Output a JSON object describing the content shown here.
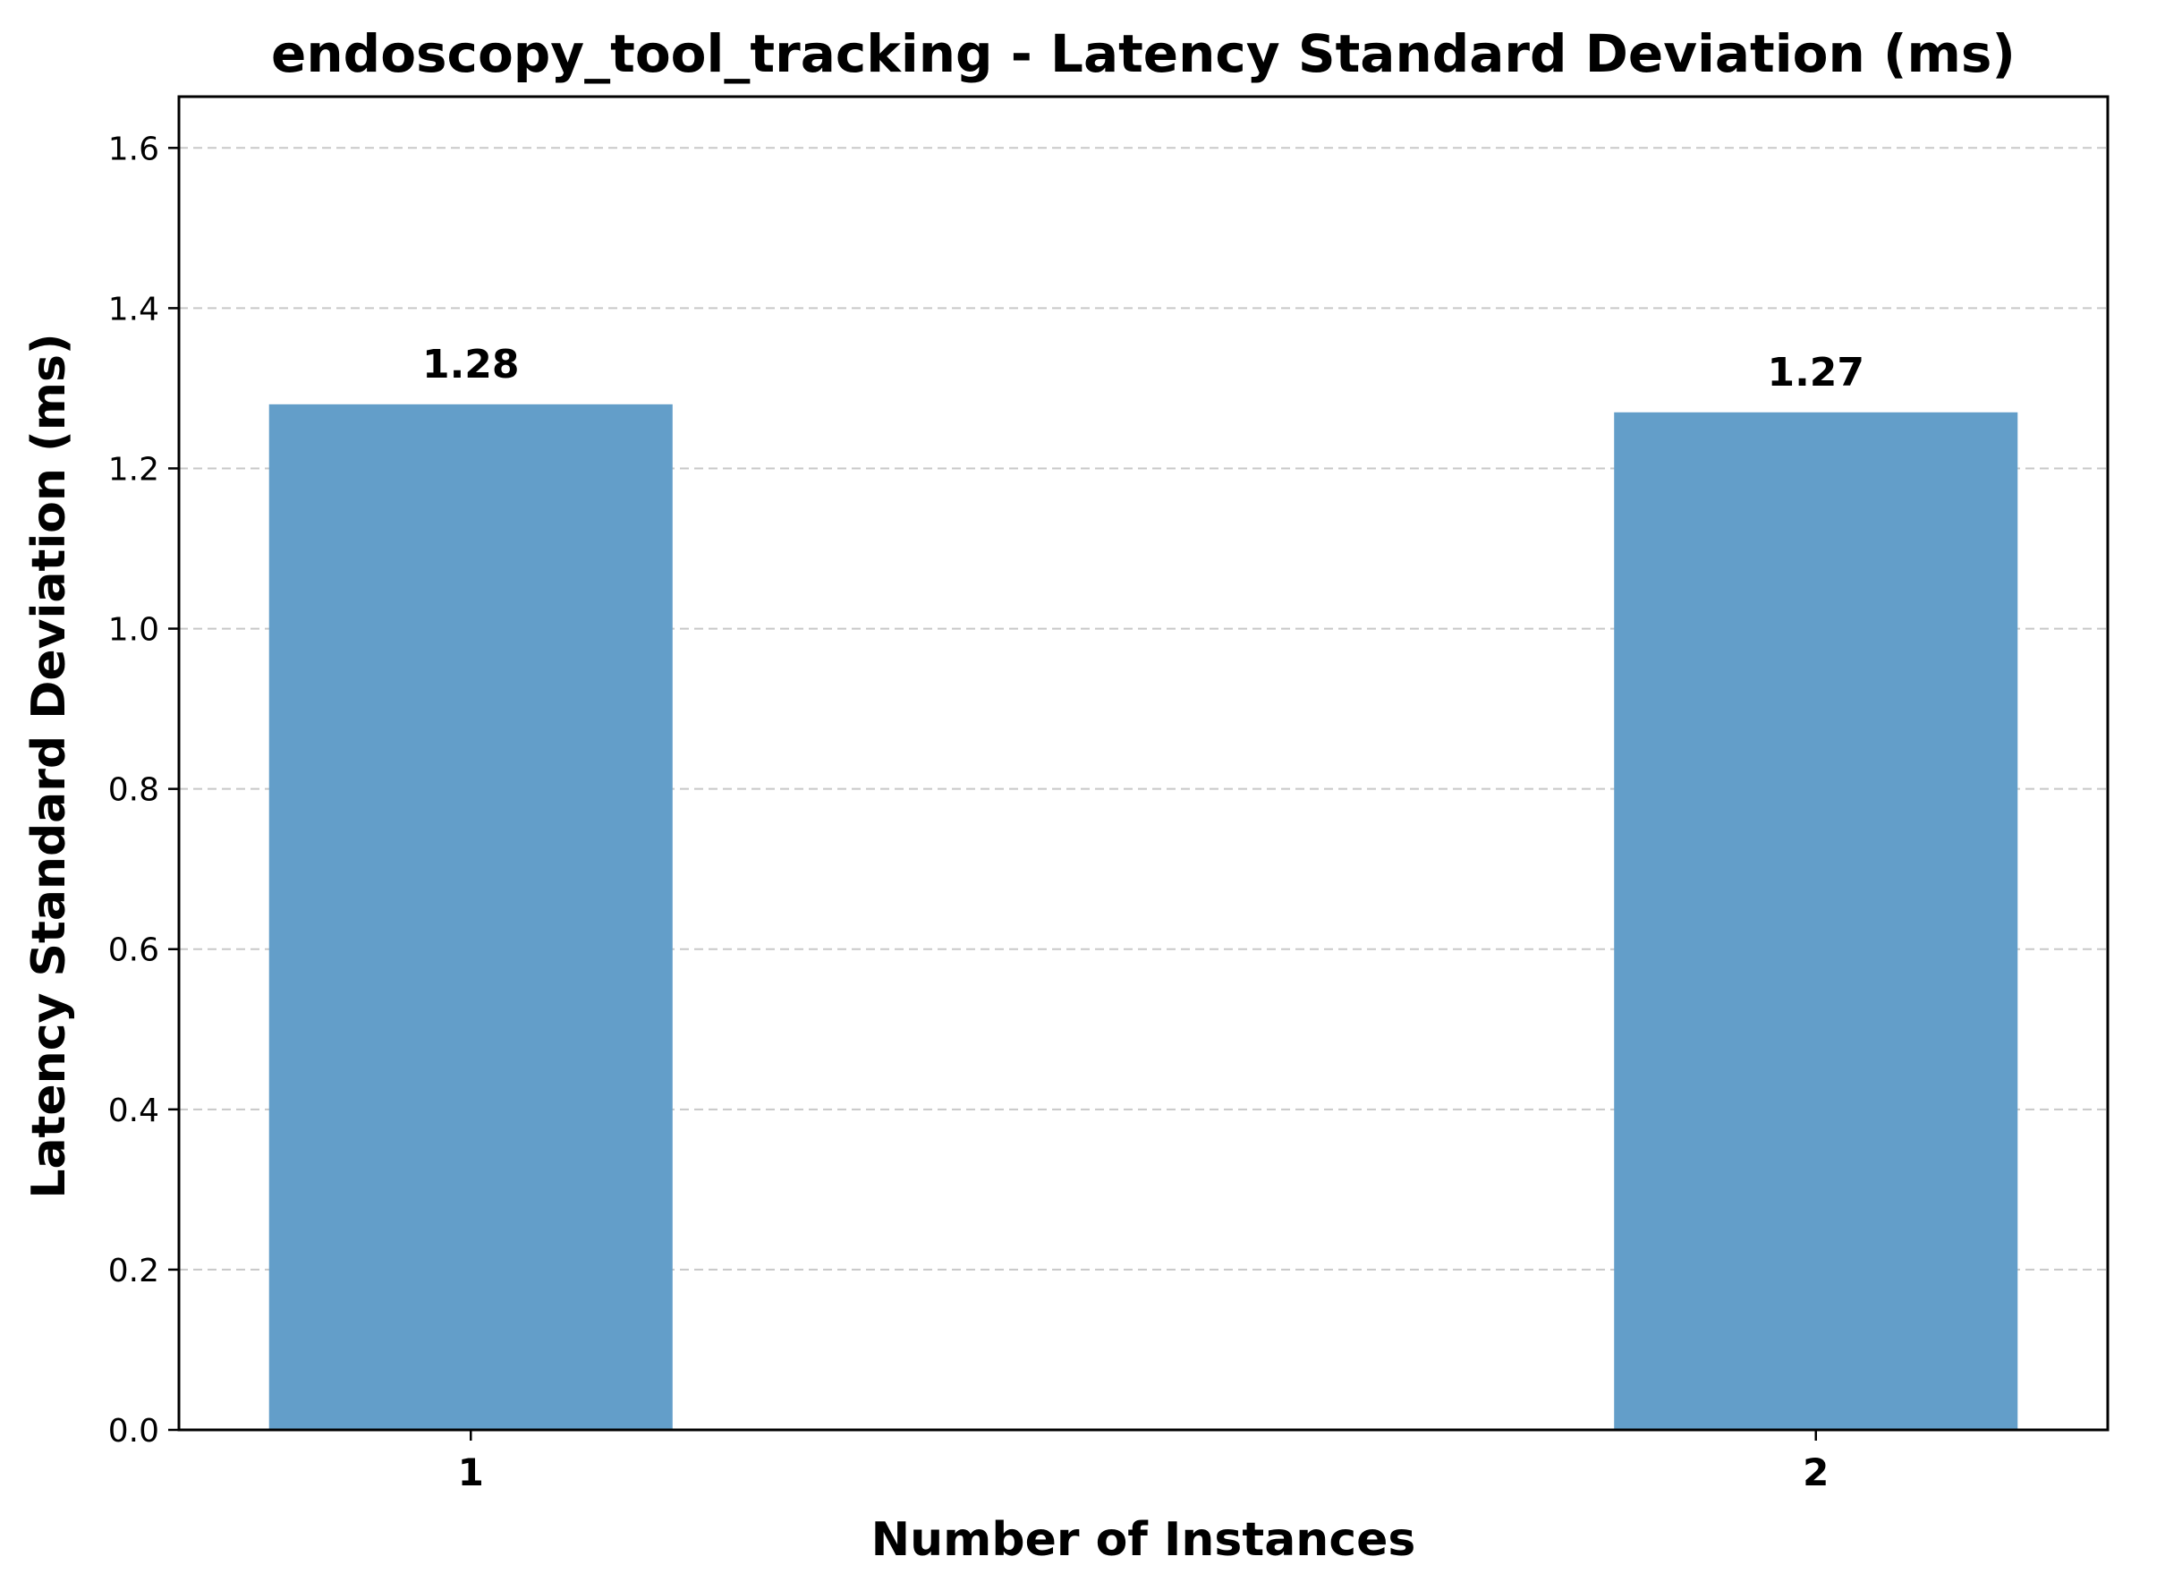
{
  "chart_data": {
    "type": "bar",
    "title": "endoscopy_tool_tracking - Latency Standard Deviation (ms)",
    "xlabel": "Number of Instances",
    "ylabel": "Latency Standard Deviation (ms)",
    "categories": [
      "1",
      "2"
    ],
    "values": [
      1.28,
      1.27
    ],
    "value_labels": [
      "1.28",
      "1.27"
    ],
    "ylim": [
      0,
      1.664
    ],
    "yticks": [
      0.0,
      0.2,
      0.4,
      0.6,
      0.8,
      1.0,
      1.2,
      1.4,
      1.6
    ],
    "ytick_labels": [
      "0.0",
      "0.2",
      "0.4",
      "0.6",
      "0.8",
      "1.0",
      "1.2",
      "1.4",
      "1.6"
    ],
    "grid": "y-dashed",
    "legend": "none",
    "bar_color": "#639ec9",
    "grid_color": "#c8c8c8"
  }
}
